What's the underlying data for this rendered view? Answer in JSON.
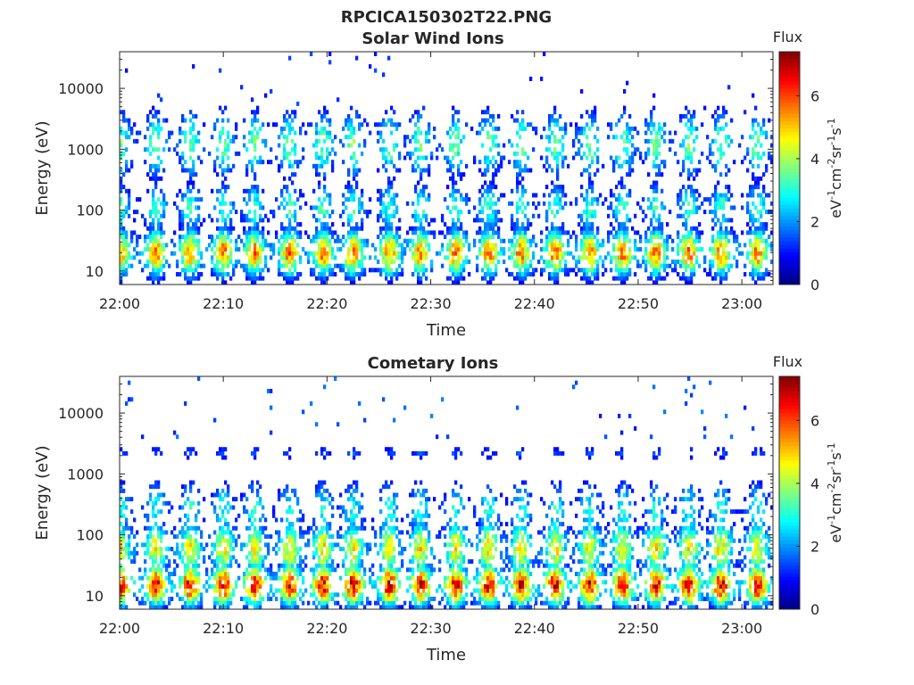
{
  "figure_title": "RPCICA150302T22.PNG",
  "chart_data": [
    {
      "type": "heatmap",
      "title": "Solar Wind Ions",
      "xlabel": "Time",
      "ylabel": "Energy (eV)",
      "y_scale": "log",
      "ylim": [
        6,
        40000
      ],
      "xlim": [
        "22:00",
        "23:03"
      ],
      "x_ticks": [
        "22:00",
        "22:10",
        "22:20",
        "22:30",
        "22:40",
        "22:50",
        "23:00"
      ],
      "y_ticks": [
        "10",
        "100",
        "1000",
        "10000"
      ],
      "y_tick_values": [
        10,
        100,
        1000,
        10000
      ],
      "grid": false,
      "colorbar": {
        "title": "Flux",
        "label": "eV-1cm-2sr-1s-1",
        "range": [
          0,
          7.4
        ],
        "ticks": [
          "0",
          "2",
          "4",
          "6"
        ],
        "tick_values": [
          0,
          2,
          4,
          6
        ],
        "colormap": "jet"
      },
      "pattern": {
        "bursts_minutes": [
          0,
          3.5,
          6.8,
          10,
          13,
          16.4,
          19.6,
          22.5,
          26,
          29,
          32.4,
          35.6,
          38.7,
          42,
          45.3,
          48.5,
          51.7,
          54.9,
          58,
          61.5
        ],
        "bands": [
          {
            "center_eV": 20,
            "width_decades": 0.38,
            "peak_flux": 5.6,
            "occupancy": 0.9
          },
          {
            "center_eV": 110,
            "width_decades": 0.4,
            "peak_flux": 3.3,
            "occupancy": 0.55
          },
          {
            "center_eV": 1200,
            "width_decades": 0.55,
            "peak_flux": 3.6,
            "occupancy": 0.45
          },
          {
            "center_eV": 2200,
            "width_decades": 0.18,
            "peak_flux": 3.0,
            "occupancy": 0.5
          }
        ],
        "sparse_high_energy_flux": 1.2
      }
    },
    {
      "type": "heatmap",
      "title": "Cometary Ions",
      "xlabel": "Time",
      "ylabel": "Energy (eV)",
      "y_scale": "log",
      "ylim": [
        6,
        40000
      ],
      "xlim": [
        "22:00",
        "23:03"
      ],
      "x_ticks": [
        "22:00",
        "22:10",
        "22:20",
        "22:30",
        "22:40",
        "22:50",
        "23:00"
      ],
      "y_ticks": [
        "10",
        "100",
        "1000",
        "10000"
      ],
      "y_tick_values": [
        10,
        100,
        1000,
        10000
      ],
      "grid": false,
      "colorbar": {
        "title": "Flux",
        "label": "eV-1cm-2sr-1s-1",
        "range": [
          0,
          7.4
        ],
        "ticks": [
          "0",
          "2",
          "4",
          "6"
        ],
        "tick_values": [
          0,
          2,
          4,
          6
        ],
        "colormap": "jet"
      },
      "pattern": {
        "bursts_minutes": [
          0,
          3.5,
          6.8,
          10,
          13,
          16.4,
          19.6,
          22.5,
          26,
          29,
          32.4,
          35.6,
          38.7,
          42,
          45.3,
          48.5,
          51.7,
          54.9,
          58,
          61.5
        ],
        "bands": [
          {
            "center_eV": 15,
            "width_decades": 0.35,
            "peak_flux": 6.6,
            "occupancy": 0.95
          },
          {
            "center_eV": 60,
            "width_decades": 0.45,
            "peak_flux": 4.8,
            "occupancy": 0.85
          },
          {
            "center_eV": 250,
            "width_decades": 0.5,
            "peak_flux": 3.0,
            "occupancy": 0.4
          },
          {
            "center_eV": 2200,
            "width_decades": 0.12,
            "peak_flux": 1.5,
            "occupancy": 0.6
          }
        ],
        "sparse_high_energy_flux": 1.5
      }
    }
  ]
}
